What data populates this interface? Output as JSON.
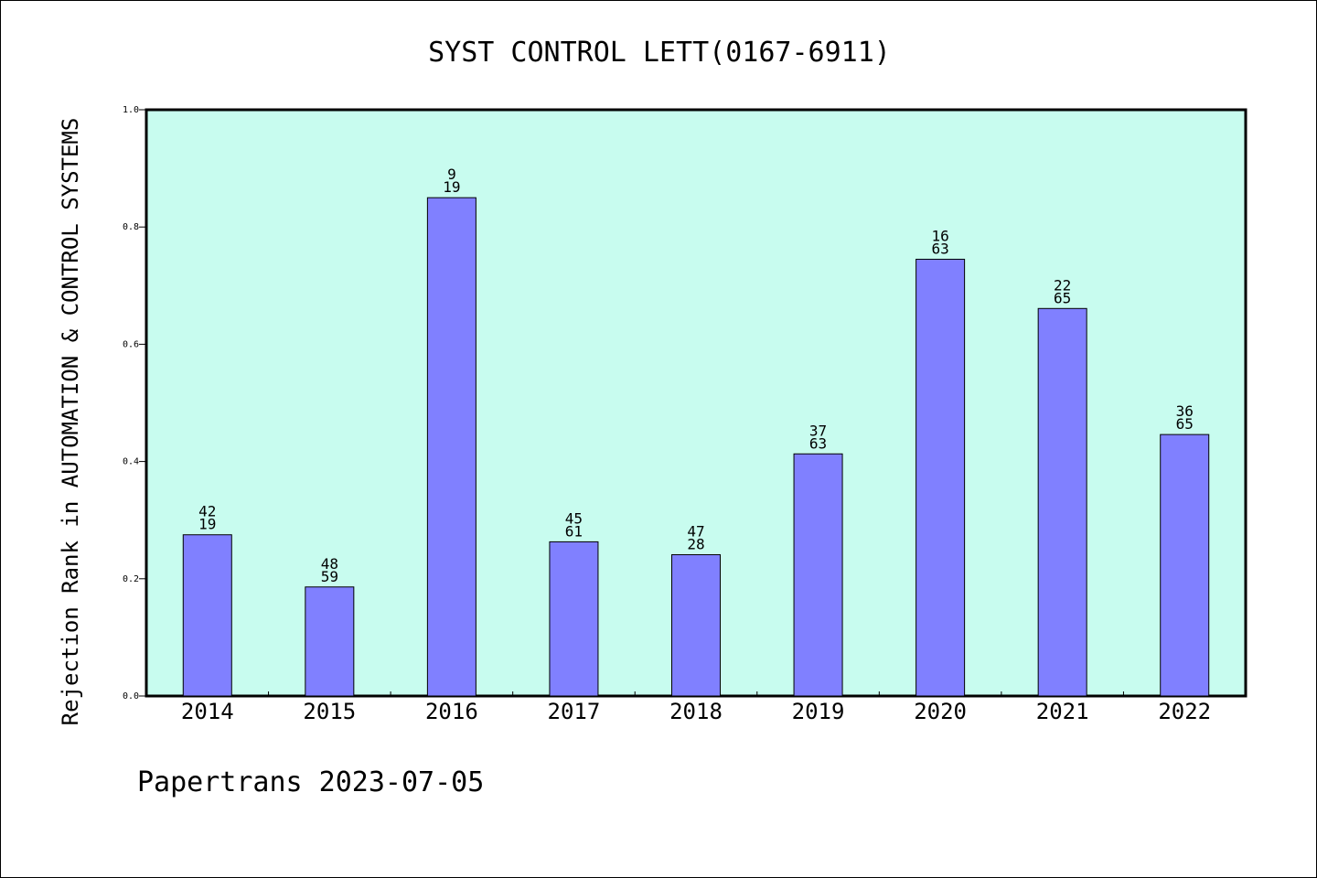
{
  "chart_data": {
    "type": "bar",
    "title": "SYST CONTROL LETT(0167-6911)",
    "xlabel": "",
    "ylabel": "Rejection Rank in AUTOMATION & CONTROL SYSTEMS",
    "ylim": [
      0,
      1.0
    ],
    "yticks": [
      "0.0",
      "0.2",
      "0.4",
      "0.6",
      "0.8",
      "1.0"
    ],
    "grid": false,
    "categories": [
      "2014",
      "2015",
      "2016",
      "2017",
      "2018",
      "2019",
      "2020",
      "2021",
      "2022"
    ],
    "values": [
      0.275,
      0.186,
      0.85,
      0.263,
      0.241,
      0.413,
      0.745,
      0.661,
      0.446
    ],
    "labels_top": [
      "42",
      "48",
      "9",
      "45",
      "47",
      "37",
      "16",
      "22",
      "36"
    ],
    "labels_bottom": [
      "19",
      "59",
      "19",
      "61",
      "28",
      "63",
      "63",
      "65",
      "65"
    ],
    "colors": {
      "bar": "#8080ff",
      "plot_bg": "#c8fcef"
    }
  },
  "footer": "Papertrans 2023-07-05"
}
